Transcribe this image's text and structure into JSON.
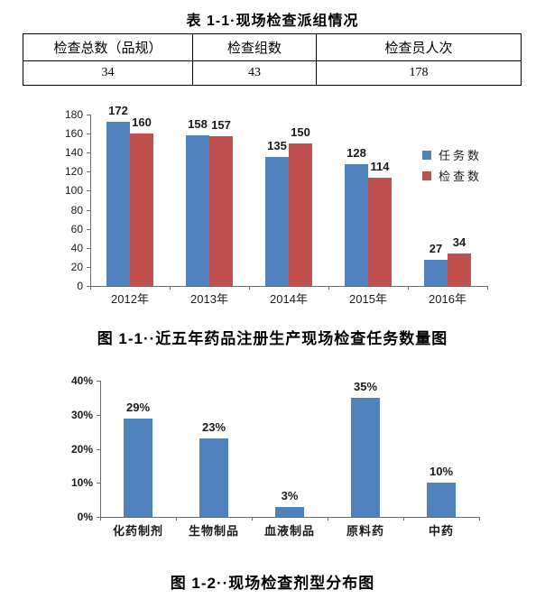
{
  "page": {
    "title": "表 1-1·现场检查派组情况",
    "figure1_caption": "图 1-1··近五年药品注册生产现场检查任务数量图",
    "figure2_caption": "图 1-2··现场检查剂型分布图"
  },
  "table": {
    "headers": [
      "检查总数（品规）",
      "检查组数",
      "检查员人次"
    ],
    "values": [
      "34",
      "43",
      "178"
    ]
  },
  "chart_data": [
    {
      "type": "bar",
      "title": "近五年药品注册生产现场检查任务数量图",
      "categories": [
        "2012年",
        "2013年",
        "2014年",
        "2015年",
        "2016年"
      ],
      "series": [
        {
          "name": "任务数",
          "color": "#4F81BD",
          "values": [
            172,
            158,
            135,
            128,
            27
          ]
        },
        {
          "name": "检查数",
          "color": "#C0504D",
          "values": [
            160,
            157,
            150,
            114,
            34
          ]
        }
      ],
      "ylim": [
        0,
        180
      ],
      "ytick_step": 20,
      "ytick_suffix": "",
      "value_suffix": "",
      "grid": false,
      "legend_position": "right"
    },
    {
      "type": "bar",
      "title": "现场检查剂型分布图",
      "categories": [
        "化药制剂",
        "生物制品",
        "血液制品",
        "原料药",
        "中药"
      ],
      "series": [
        {
          "name": "",
          "color": "#4F81BD",
          "values": [
            29,
            23,
            3,
            35,
            10
          ]
        }
      ],
      "ylim": [
        0,
        40
      ],
      "ytick_step": 10,
      "ytick_suffix": "%",
      "value_suffix": "%",
      "grid": false,
      "legend_position": "none"
    }
  ]
}
